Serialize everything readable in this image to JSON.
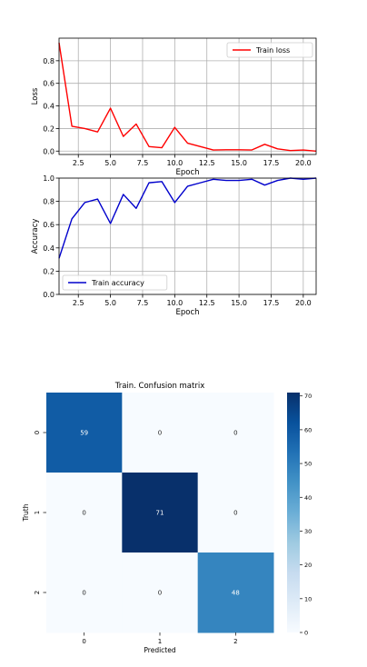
{
  "chart_data": [
    {
      "type": "line",
      "xlabel": "Epoch",
      "ylabel": "Loss",
      "xlim": [
        1,
        21
      ],
      "ylim": [
        -0.03,
        1.0
      ],
      "xticks": [
        2.5,
        5.0,
        7.5,
        10.0,
        12.5,
        15.0,
        17.5,
        20.0
      ],
      "xtick_labels": [
        "2.5",
        "5.0",
        "7.5",
        "10.0",
        "12.5",
        "15.0",
        "17.5",
        "20.0"
      ],
      "yticks": [
        0.0,
        0.2,
        0.4,
        0.6,
        0.8
      ],
      "ytick_labels": [
        "0.0",
        "0.2",
        "0.4",
        "0.6",
        "0.8"
      ],
      "grid": true,
      "legend": "top-right",
      "series": [
        {
          "name": "Train loss",
          "color": "#ff0000",
          "x": [
            1,
            2,
            3,
            4,
            5,
            6,
            7,
            8,
            9,
            10,
            11,
            12,
            13,
            14,
            15,
            16,
            17,
            18,
            19,
            20,
            21
          ],
          "values": [
            0.96,
            0.22,
            0.2,
            0.17,
            0.38,
            0.13,
            0.24,
            0.04,
            0.03,
            0.21,
            0.07,
            0.04,
            0.01,
            0.012,
            0.012,
            0.01,
            0.06,
            0.02,
            0.005,
            0.01,
            0.0
          ]
        }
      ]
    },
    {
      "type": "line",
      "xlabel": "Epoch",
      "ylabel": "Accuracy",
      "xlim": [
        1,
        21
      ],
      "ylim": [
        0.0,
        1.0
      ],
      "xticks": [
        2.5,
        5.0,
        7.5,
        10.0,
        12.5,
        15.0,
        17.5,
        20.0
      ],
      "xtick_labels": [
        "2.5",
        "5.0",
        "7.5",
        "10.0",
        "12.5",
        "15.0",
        "17.5",
        "20.0"
      ],
      "yticks": [
        0.0,
        0.2,
        0.4,
        0.6,
        0.8,
        1.0
      ],
      "ytick_labels": [
        "0.0",
        "0.2",
        "0.4",
        "0.6",
        "0.8",
        "1.0"
      ],
      "grid": true,
      "legend": "bottom-left",
      "series": [
        {
          "name": "Train accuracy",
          "color": "#0000cc",
          "x": [
            1,
            2,
            3,
            4,
            5,
            6,
            7,
            8,
            9,
            10,
            11,
            12,
            13,
            14,
            15,
            16,
            17,
            18,
            19,
            20,
            21
          ],
          "values": [
            0.31,
            0.65,
            0.79,
            0.82,
            0.61,
            0.86,
            0.74,
            0.96,
            0.97,
            0.79,
            0.93,
            0.96,
            0.99,
            0.98,
            0.98,
            0.99,
            0.94,
            0.98,
            1.0,
            0.99,
            1.0
          ]
        }
      ]
    },
    {
      "type": "heatmap",
      "title": "Train. Confusion matrix",
      "xlabel": "Predicted",
      "ylabel": "Truth",
      "x_categories": [
        "0",
        "1",
        "2"
      ],
      "y_categories": [
        "0",
        "1",
        "2"
      ],
      "values": [
        [
          59,
          0,
          0
        ],
        [
          0,
          71,
          0
        ],
        [
          0,
          0,
          48
        ]
      ],
      "colormap": "Blues",
      "colorbar_range": [
        0,
        71
      ],
      "colorbar_ticks": [
        0,
        10,
        20,
        30,
        40,
        50,
        60,
        70
      ],
      "colorbar_tick_labels": [
        "0",
        "10",
        "20",
        "30",
        "40",
        "50",
        "60",
        "70"
      ]
    }
  ]
}
